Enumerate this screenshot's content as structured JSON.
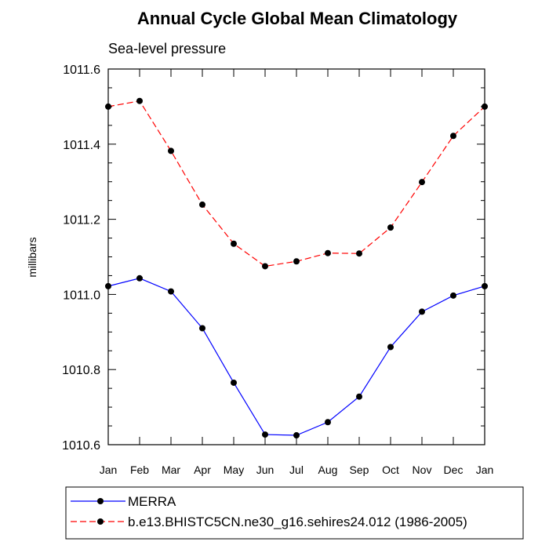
{
  "chart_data": {
    "type": "line",
    "title": "Annual Cycle Global Mean Climatology",
    "subtitle": "Sea-level pressure",
    "xlabel": "",
    "ylabel": "millibars",
    "categories": [
      "Jan",
      "Feb",
      "Mar",
      "Apr",
      "May",
      "Jun",
      "Jul",
      "Aug",
      "Sep",
      "Oct",
      "Nov",
      "Dec",
      "Jan"
    ],
    "ylim": [
      1010.6,
      1011.6
    ],
    "y_ticks": [
      "1010.6",
      "1010.8",
      "1011.0",
      "1011.2",
      "1011.4",
      "1011.6"
    ],
    "legend_position": "bottom",
    "series": [
      {
        "name": "MERRA",
        "color": "#0000ff",
        "dash": "solid",
        "values": [
          1011.022,
          1011.043,
          1011.008,
          1010.91,
          1010.765,
          1010.627,
          1010.625,
          1010.66,
          1010.728,
          1010.86,
          1010.954,
          1010.997,
          1011.022
        ]
      },
      {
        "name": "b.e13.BHISTC5CN.ne30_g16.sehires24.012 (1986-2005)",
        "color": "#ff0000",
        "dash": "dashed",
        "values": [
          1011.5,
          1011.515,
          1011.382,
          1011.239,
          1011.135,
          1011.075,
          1011.088,
          1011.11,
          1011.109,
          1011.178,
          1011.299,
          1011.422,
          1011.5
        ]
      }
    ]
  }
}
